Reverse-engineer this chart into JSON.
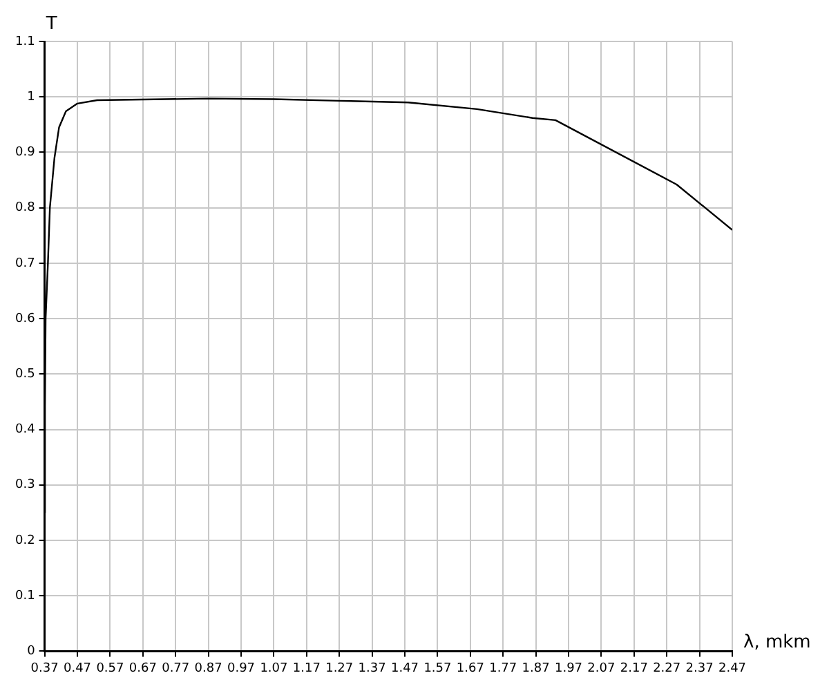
{
  "chart_data": {
    "type": "line",
    "xlabel": "λ, mkm",
    "ylabel": "T",
    "x": [
      0.37,
      0.371,
      0.373,
      0.38,
      0.386,
      0.4,
      0.414,
      0.435,
      0.47,
      0.53,
      0.87,
      1.07,
      1.27,
      1.48,
      1.69,
      1.86,
      1.93,
      2.3,
      2.47
    ],
    "series": [
      {
        "color": "#000000",
        "values": [
          0.25,
          0.44,
          0.6,
          0.7,
          0.8,
          0.89,
          0.945,
          0.974,
          0.988,
          0.994,
          0.997,
          0.996,
          0.993,
          0.99,
          0.978,
          0.962,
          0.958,
          0.842,
          0.76
        ]
      }
    ],
    "xlim": [
      0.37,
      2.47
    ],
    "xticks": [
      0.37,
      0.47,
      0.57,
      0.67,
      0.77,
      0.87,
      0.97,
      1.07,
      1.17,
      1.27,
      1.37,
      1.47,
      1.57,
      1.67,
      1.77,
      1.87,
      1.97,
      2.07,
      2.17,
      2.27,
      2.37,
      2.47
    ],
    "ylim": [
      0,
      1.1
    ],
    "yticks": [
      0,
      0.1,
      0.2,
      0.3,
      0.4,
      0.5,
      0.6,
      0.7,
      0.8,
      0.9,
      1,
      1.1
    ],
    "grid": true,
    "legend": false,
    "marker": "none",
    "line_style": "solid"
  }
}
